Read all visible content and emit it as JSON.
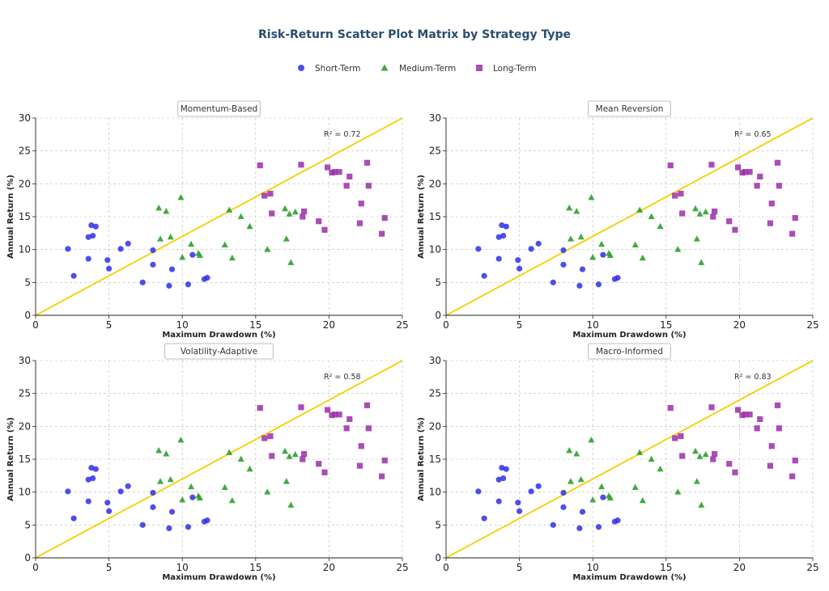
{
  "figure_title": "Risk-Return Scatter Plot Matrix by Strategy Type",
  "legend": [
    {
      "label": "Short-Term",
      "marker": "circle",
      "color": "#2f2fe8"
    },
    {
      "label": "Medium-Term",
      "marker": "triangle",
      "color": "#2ca02c"
    },
    {
      "label": "Long-Term",
      "marker": "square",
      "color": "#9b2ea8"
    }
  ],
  "trend_color": "#f5d316",
  "chart_data": [
    {
      "type": "scatter",
      "title": "Momentum-Based",
      "r2_label": "R² = 0.72"
    },
    {
      "type": "scatter",
      "title": "Mean Reversion",
      "r2_label": "R² = 0.65"
    },
    {
      "type": "scatter",
      "title": "Volatility-Adaptive",
      "r2_label": "R² = 0.58"
    },
    {
      "type": "scatter",
      "title": "Macro-Informed",
      "r2_label": "R² = 0.83"
    }
  ],
  "shared": {
    "xlabel": "Maximum Drawdown (%)",
    "ylabel": "Annual Return (%)",
    "xlim": [
      0,
      25
    ],
    "ylim": [
      0,
      30
    ],
    "xticks": [
      0,
      5,
      10,
      15,
      20,
      25
    ],
    "yticks": [
      0,
      5,
      10,
      15,
      20,
      25,
      30
    ],
    "grid": true,
    "trend_line": {
      "x": [
        0,
        25
      ],
      "y": [
        0,
        30
      ]
    },
    "series": [
      {
        "name": "Short-Term",
        "marker": "circle",
        "points": [
          [
            2.2,
            10.1
          ],
          [
            2.6,
            6.0
          ],
          [
            3.6,
            8.6
          ],
          [
            3.6,
            11.9
          ],
          [
            3.8,
            13.7
          ],
          [
            3.9,
            12.1
          ],
          [
            4.1,
            13.5
          ],
          [
            4.9,
            8.4
          ],
          [
            5.0,
            7.1
          ],
          [
            5.8,
            10.1
          ],
          [
            6.3,
            10.9
          ],
          [
            7.3,
            5.0
          ],
          [
            8.0,
            7.7
          ],
          [
            8.0,
            9.9
          ],
          [
            9.1,
            4.5
          ],
          [
            9.3,
            7.0
          ],
          [
            10.4,
            4.7
          ],
          [
            10.7,
            9.2
          ],
          [
            11.5,
            5.5
          ],
          [
            11.7,
            5.7
          ]
        ]
      },
      {
        "name": "Medium-Term",
        "marker": "triangle",
        "points": [
          [
            8.4,
            16.3
          ],
          [
            8.5,
            11.6
          ],
          [
            8.9,
            15.8
          ],
          [
            9.2,
            11.9
          ],
          [
            9.9,
            17.9
          ],
          [
            10.0,
            8.8
          ],
          [
            10.6,
            10.8
          ],
          [
            11.1,
            9.4
          ],
          [
            11.2,
            9.1
          ],
          [
            12.9,
            10.7
          ],
          [
            13.2,
            16.0
          ],
          [
            13.4,
            8.7
          ],
          [
            14.0,
            15.0
          ],
          [
            14.6,
            13.5
          ],
          [
            15.8,
            10.0
          ],
          [
            17.0,
            16.2
          ],
          [
            17.1,
            11.6
          ],
          [
            17.3,
            15.4
          ],
          [
            17.4,
            8.0
          ],
          [
            17.7,
            15.7
          ]
        ]
      },
      {
        "name": "Long-Term",
        "marker": "square",
        "points": [
          [
            15.3,
            22.8
          ],
          [
            15.6,
            18.2
          ],
          [
            16.0,
            18.5
          ],
          [
            16.1,
            15.5
          ],
          [
            18.1,
            22.9
          ],
          [
            18.2,
            15.0
          ],
          [
            18.3,
            15.8
          ],
          [
            19.3,
            14.3
          ],
          [
            19.7,
            13.0
          ],
          [
            19.9,
            22.5
          ],
          [
            20.2,
            21.7
          ],
          [
            20.4,
            21.8
          ],
          [
            20.7,
            21.8
          ],
          [
            21.2,
            19.7
          ],
          [
            21.4,
            21.1
          ],
          [
            22.1,
            14.0
          ],
          [
            22.2,
            17.0
          ],
          [
            22.6,
            23.2
          ],
          [
            22.7,
            19.7
          ],
          [
            23.6,
            12.4
          ],
          [
            23.8,
            14.8
          ]
        ]
      }
    ]
  }
}
